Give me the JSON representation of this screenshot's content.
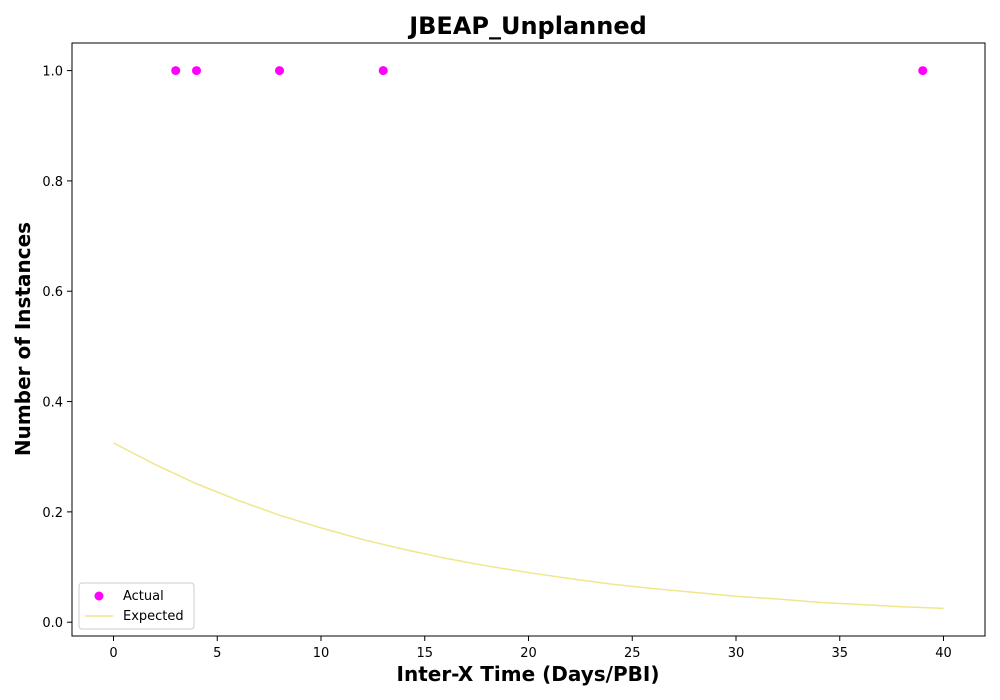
{
  "chart_data": {
    "type": "scatter",
    "title": "JBEAP_Unplanned",
    "xlabel": "Inter-X Time (Days/PBI)",
    "ylabel": "Number of Instances",
    "xlim": [
      -2,
      42
    ],
    "ylim": [
      -0.025,
      1.05
    ],
    "xticks": [
      0,
      5,
      10,
      15,
      20,
      25,
      30,
      35,
      40
    ],
    "yticks": [
      0.0,
      0.2,
      0.4,
      0.6,
      0.8,
      1.0
    ],
    "grid": false,
    "legend_position": "lower-left",
    "series": [
      {
        "name": "Actual",
        "kind": "scatter",
        "color": "#ff00ff",
        "x": [
          3,
          4,
          8,
          13,
          39
        ],
        "y": [
          1.0,
          1.0,
          1.0,
          1.0,
          1.0
        ]
      },
      {
        "name": "Expected",
        "kind": "line",
        "color": "#f0e68c",
        "x": [
          0,
          2,
          4,
          6,
          8,
          10,
          12,
          14,
          16,
          18,
          20,
          22,
          24,
          26,
          28,
          30,
          32,
          34,
          36,
          38,
          40
        ],
        "y": [
          0.325,
          0.286,
          0.251,
          0.221,
          0.194,
          0.171,
          0.15,
          0.132,
          0.116,
          0.102,
          0.09,
          0.079,
          0.069,
          0.061,
          0.054,
          0.047,
          0.042,
          0.036,
          0.032,
          0.028,
          0.025
        ]
      }
    ]
  }
}
